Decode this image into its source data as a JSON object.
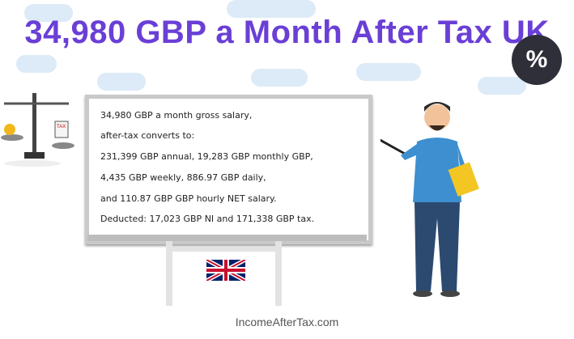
{
  "title": "34,980 GBP a Month After Tax UK",
  "badge": "%",
  "board": {
    "lines": [
      "34,980 GBP a month gross salary,",
      "after-tax converts to:",
      "231,399 GBP annual, 19,283 GBP monthly GBP,",
      "4,435 GBP weekly, 886.97 GBP daily,",
      "and 110.87 GBP GBP hourly NET salary.",
      "Deducted: 17,023 GBP NI and 171,338 GBP tax."
    ]
  },
  "scale_label": "TAX",
  "footer": "IncomeAfterTax.com",
  "colors": {
    "title": "#6a3fd6",
    "cloud": "#dcebf7"
  }
}
